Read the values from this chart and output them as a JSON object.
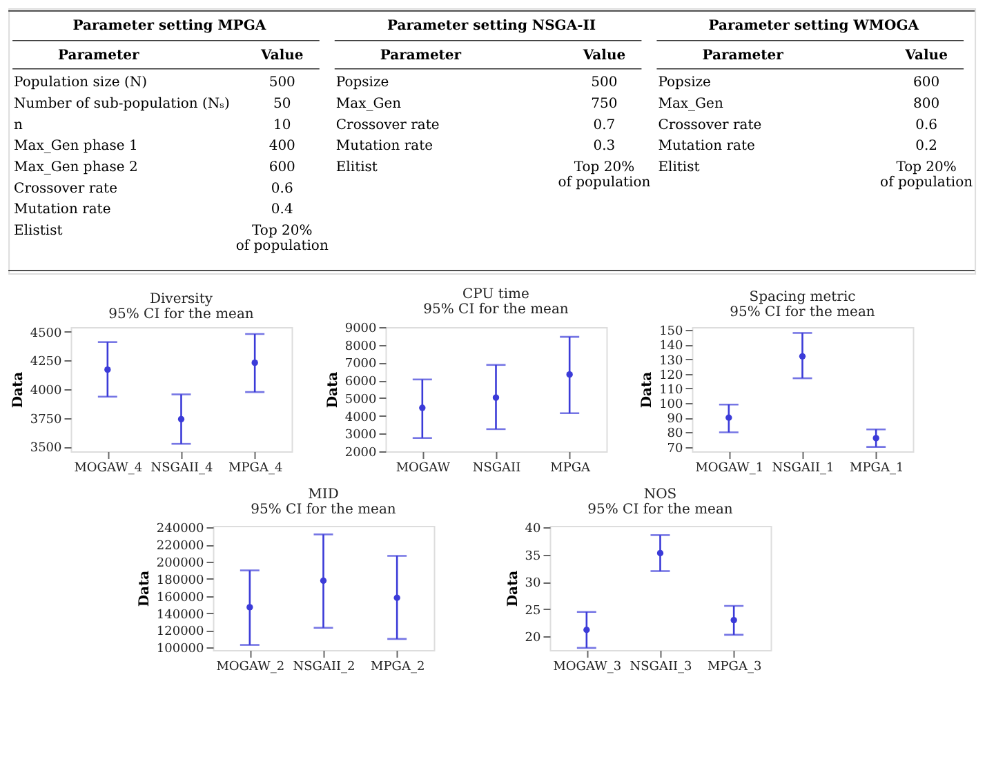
{
  "chart_data": [
    {
      "type": "other",
      "annotations": [
        "Parameter setting MPGA",
        "Parameter setting NSGA-II",
        "Parameter setting WMOGA"
      ],
      "categories": [
        "Parameter",
        "Value",
        "Parameter",
        "Value",
        "Parameter",
        "Value"
      ],
      "cell_labels": [
        [
          "Population size (N)",
          "500",
          "Popsize",
          "500",
          "Popsize",
          "600"
        ],
        [
          "Number of sub-population (Nₛ)",
          "50",
          "Max_Gen",
          "750",
          "Max_Gen",
          "800"
        ],
        [
          "n",
          "10",
          "Crossover rate",
          "0.7",
          "Crossover rate",
          "0.6"
        ],
        [
          "Max_Gen phase 1",
          "400",
          "Mutation rate",
          "0.3",
          "Mutation rate",
          "0.2"
        ],
        [
          "Max_Gen phase 2",
          "600",
          "Elitist",
          "Top 20% of population",
          "Elitist",
          "Top 20% of population"
        ],
        [
          "Crossover rate",
          "0.6",
          null,
          null,
          null,
          null
        ],
        [
          "Mutation rate",
          "0.4",
          null,
          null,
          null,
          null
        ],
        [
          "Elistist",
          "Top 20% of population",
          null,
          null,
          null,
          null
        ]
      ]
    },
    {
      "type": "scatter",
      "title": "Diversity",
      "subtitle": "95% CI for the mean",
      "ylabel": "Data",
      "categories": [
        "MOGAW_4",
        "NSGAII_4",
        "MPGA_4"
      ],
      "series": [
        {
          "color": "#3b3bd8",
          "values": [
            4170,
            3740,
            4230
          ],
          "errors": [
            [
              3935,
              4410
            ],
            [
              3525,
              3955
            ],
            [
              3975,
              4480
            ]
          ]
        }
      ],
      "ylim": [
        3460,
        4540
      ],
      "yticks": [
        3500,
        3750,
        4000,
        4250,
        4500
      ],
      "marker": "circle",
      "grid": false
    },
    {
      "type": "scatter",
      "title": "CPU time",
      "subtitle": "95% CI for the mean",
      "ylabel": "Data",
      "categories": [
        "MOGAW",
        "NSGAII",
        "MPGA"
      ],
      "series": [
        {
          "color": "#3b3bd8",
          "values": [
            4450,
            5030,
            6330
          ],
          "errors": [
            [
              2750,
              6050
            ],
            [
              3250,
              6870
            ],
            [
              4150,
              8450
            ]
          ]
        }
      ],
      "ylim": [
        2000,
        9000
      ],
      "yticks": [
        2000,
        3000,
        4000,
        5000,
        6000,
        7000,
        8000,
        9000
      ],
      "marker": "circle",
      "grid": false
    },
    {
      "type": "scatter",
      "title": "Spacing metric",
      "subtitle": "95% CI for the mean",
      "ylabel": "Data",
      "categories": [
        "MOGAW_1",
        "NSGAII_1",
        "MPGA_1"
      ],
      "series": [
        {
          "color": "#3b3bd8",
          "values": [
            90,
            132,
            76
          ],
          "errors": [
            [
              80,
              99
            ],
            [
              117,
              148
            ],
            [
              70,
              82
            ]
          ]
        }
      ],
      "ylim": [
        67,
        152
      ],
      "yticks": [
        70,
        80,
        90,
        100,
        110,
        120,
        130,
        140,
        150
      ],
      "marker": "circle",
      "grid": false
    },
    {
      "type": "scatter",
      "title": "MID",
      "subtitle": "95% CI for the mean",
      "ylabel": "Data",
      "categories": [
        "MOGAW_2",
        "NSGAII_2",
        "MPGA_2"
      ],
      "series": [
        {
          "color": "#3b3bd8",
          "values": [
            147000,
            178000,
            158000
          ],
          "errors": [
            [
              103000,
              190000
            ],
            [
              123000,
              232000
            ],
            [
              110000,
              207000
            ]
          ]
        }
      ],
      "ylim": [
        97000,
        242000
      ],
      "yticks": [
        100000,
        120000,
        140000,
        160000,
        180000,
        200000,
        220000,
        240000
      ],
      "marker": "circle",
      "grid": false
    },
    {
      "type": "scatter",
      "title": "NOS",
      "subtitle": "95% CI for the mean",
      "ylabel": "Data",
      "categories": [
        "MOGAW_3",
        "NSGAII_3",
        "MPGA_3"
      ],
      "series": [
        {
          "color": "#3b3bd8",
          "values": [
            21.2,
            35.3,
            23
          ],
          "errors": [
            [
              17.9,
              24.5
            ],
            [
              32,
              38.6
            ],
            [
              20.3,
              25.6
            ]
          ]
        }
      ],
      "ylim": [
        17.5,
        40.3
      ],
      "yticks": [
        20,
        25,
        30,
        35,
        40
      ],
      "marker": "circle",
      "grid": false
    }
  ]
}
